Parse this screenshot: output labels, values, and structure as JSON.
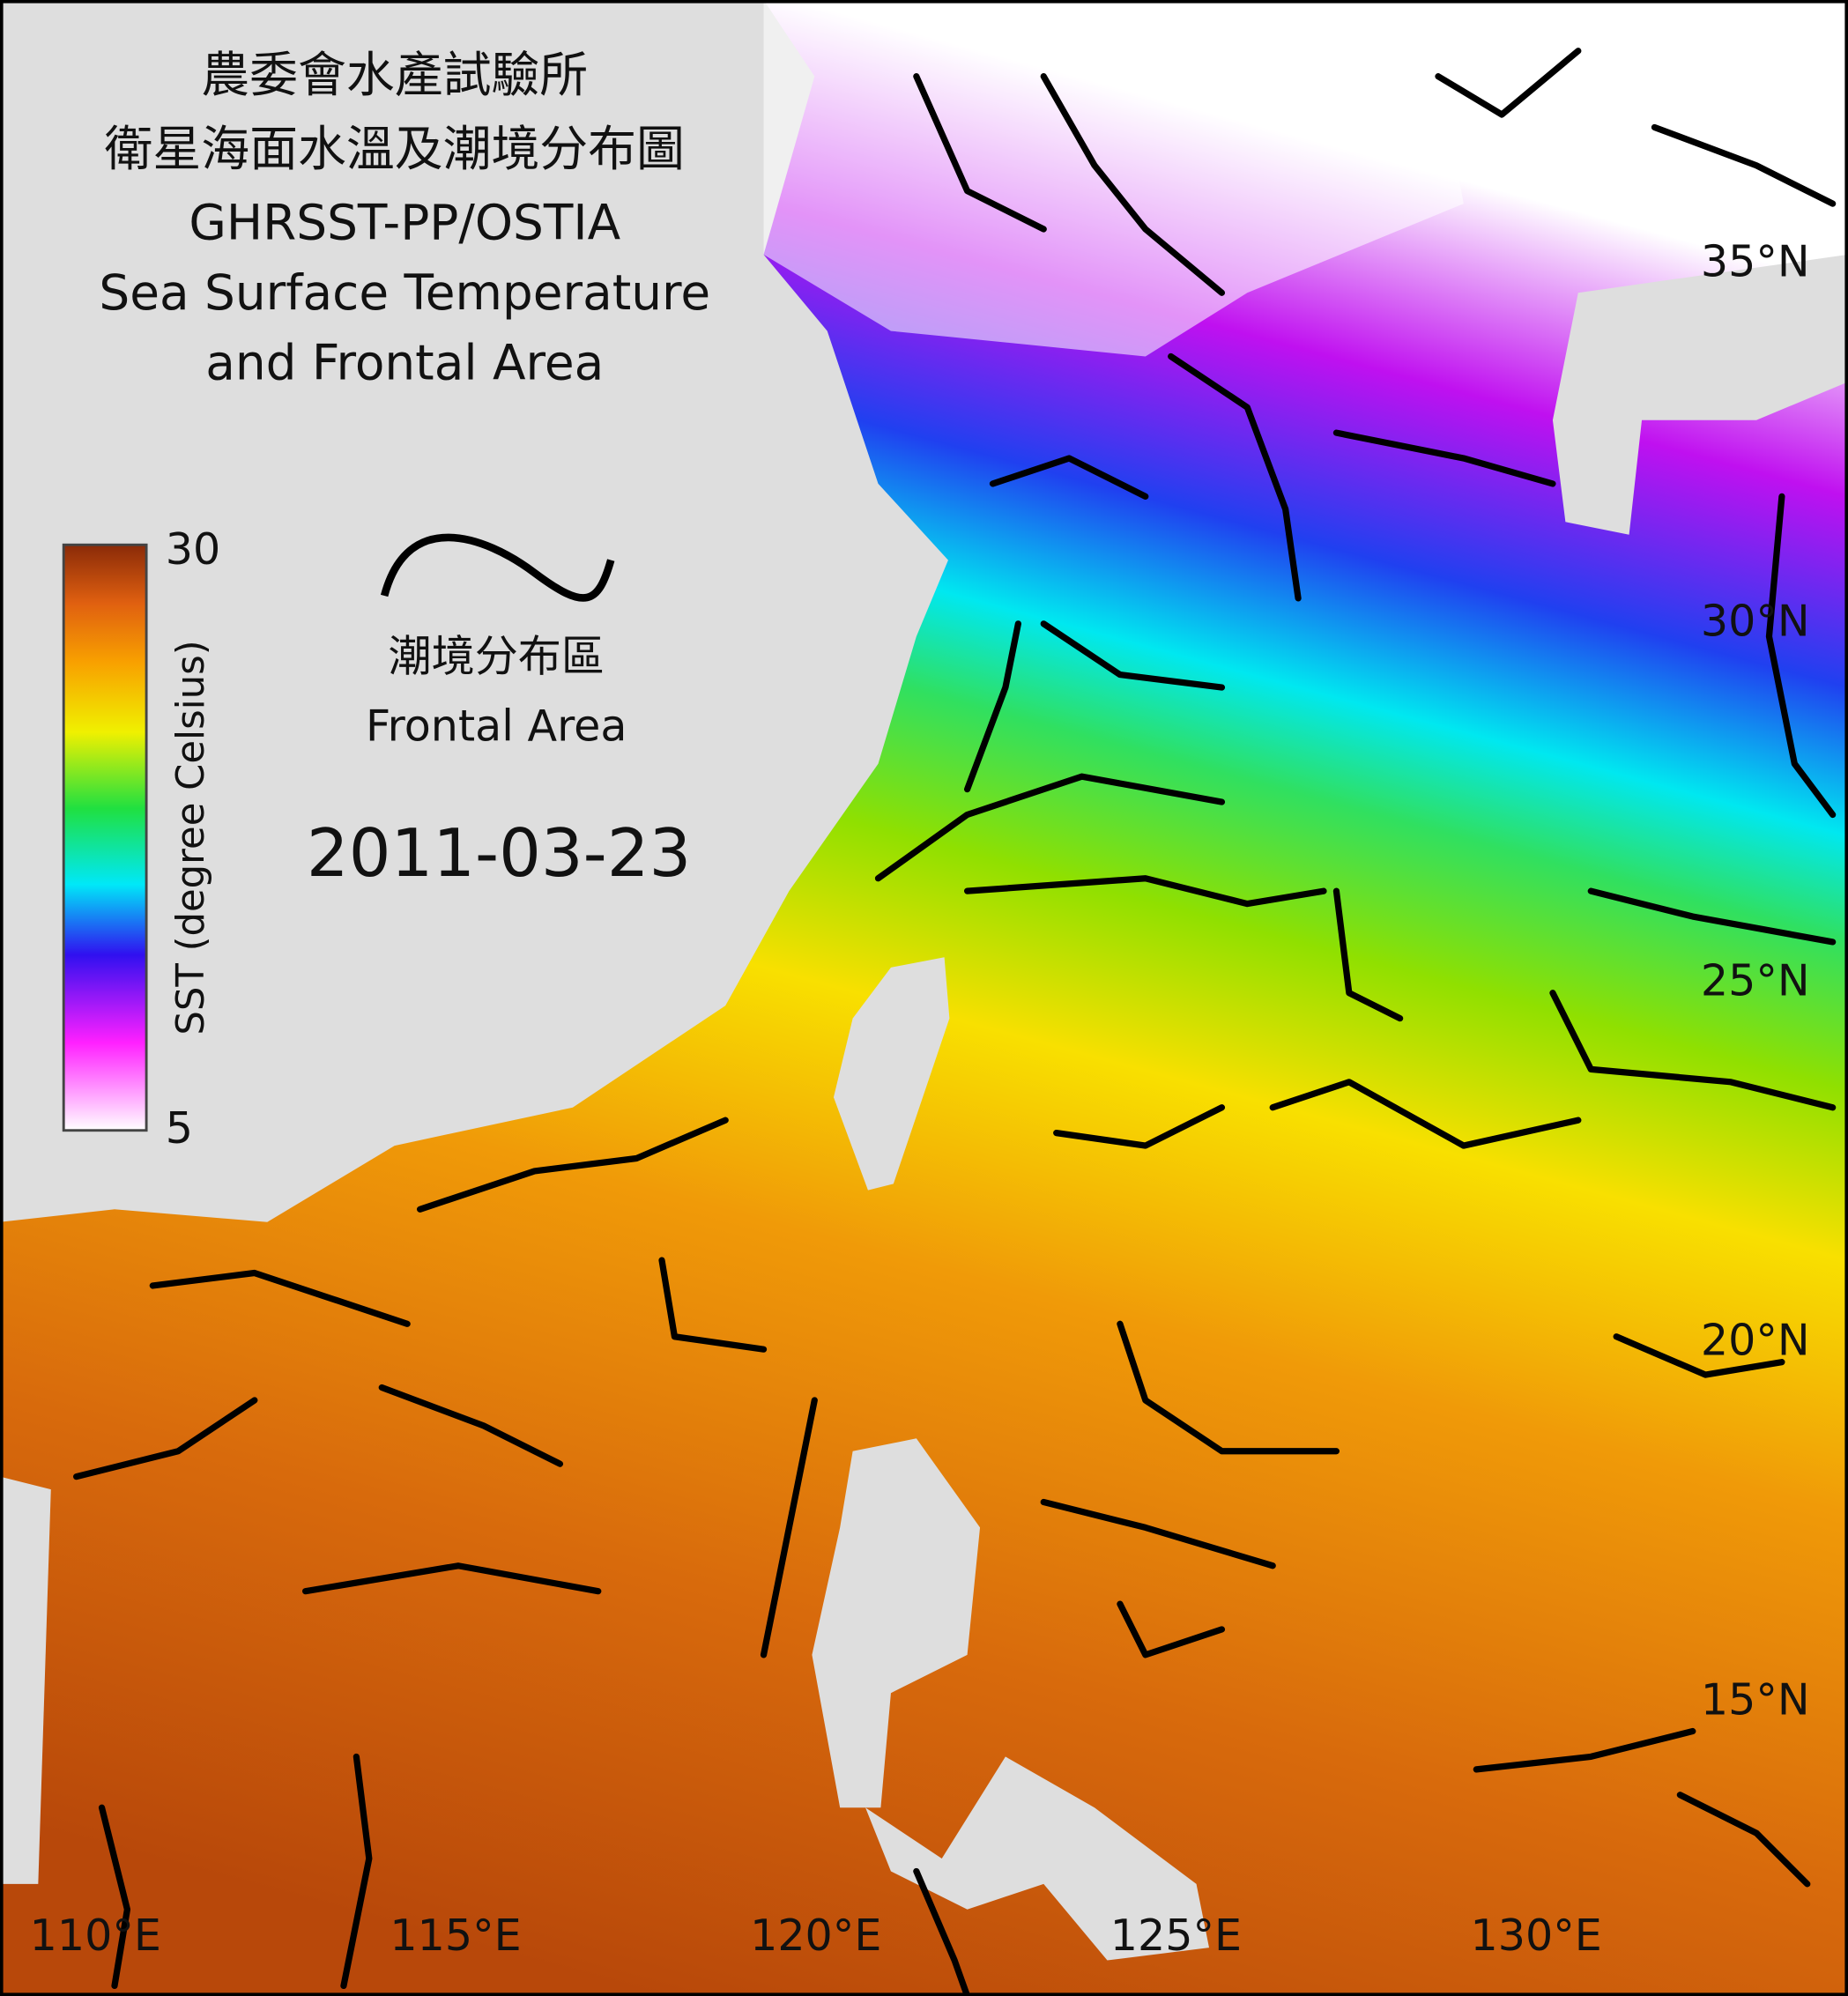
{
  "title": [
    "農委會水產試驗所",
    "衛星海面水溫及潮境分布圖",
    "GHRSST-PP/OSTIA",
    "Sea Surface Temperature",
    "and Frontal Area"
  ],
  "colorbar": {
    "label": "SST (degree Celsius)",
    "min": 5,
    "max": 30
  },
  "front_legend": [
    "潮境分布區",
    "Frontal Area"
  ],
  "date": "2011-03-23",
  "lat_labels": [
    "35°N",
    "30°N",
    "25°N",
    "20°N",
    "15°N"
  ],
  "lon_labels": [
    "110°E",
    "115°E",
    "120°E",
    "125°E",
    "130°E"
  ]
}
